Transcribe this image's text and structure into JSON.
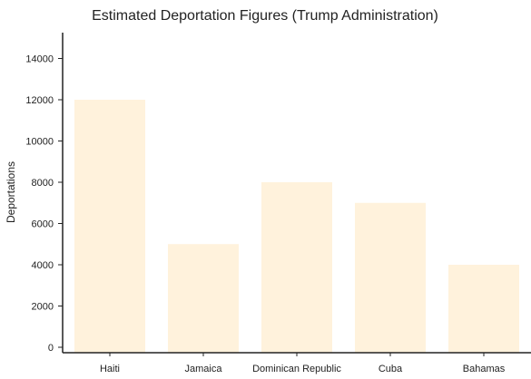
{
  "chart_data": {
    "type": "bar",
    "title": "Estimated Deportation Figures (Trump Administration)",
    "xlabel": "",
    "ylabel": "Deportations",
    "categories": [
      "Haiti",
      "Jamaica",
      "Dominican Republic",
      "Cuba",
      "Bahamas"
    ],
    "values": [
      12000,
      5000,
      8000,
      7000,
      4000
    ],
    "ylim": [
      0,
      15000
    ],
    "yticks": [
      0,
      2000,
      4000,
      6000,
      8000,
      10000,
      12000,
      14000
    ],
    "bar_color": "#fff2dc",
    "grid": false,
    "legend": false
  }
}
